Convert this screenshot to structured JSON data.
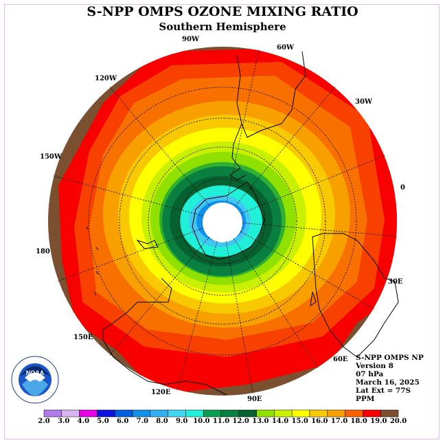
{
  "header": {
    "title": "S-NPP OMPS OZONE MIXING RATIO",
    "subtitle": "Southern Hemisphere"
  },
  "longitude_labels": [
    {
      "text": "90W"
    },
    {
      "text": "60W"
    },
    {
      "text": "30W"
    },
    {
      "text": "0"
    },
    {
      "text": "30E"
    },
    {
      "text": "60E"
    },
    {
      "text": "90E"
    },
    {
      "text": "120E"
    },
    {
      "text": "150E"
    },
    {
      "text": "180"
    },
    {
      "text": "150W"
    },
    {
      "text": "120W"
    }
  ],
  "info": {
    "product": "S-NPP OMPS NP",
    "version": "Version 8",
    "level": "07 hPa",
    "date": "March 16, 2025",
    "lat_ext": "Lat Ext = 77S",
    "units": "PPM"
  },
  "logo": {
    "text": "NOAA"
  },
  "colorbar": {
    "ticks": [
      "2.0",
      "3.0",
      "4.0",
      "5.0",
      "6.0",
      "7.0",
      "8.0",
      "9.0",
      "10.0",
      "11.0",
      "12.0",
      "13.0",
      "14.0",
      "15.0",
      "16.0",
      "17.0",
      "18.0",
      "19.0",
      "20.0"
    ],
    "colors": [
      "#b07ae8",
      "#d8b4f0",
      "#e600e6",
      "#1010e0",
      "#0060e0",
      "#1090e8",
      "#30b0f0",
      "#40d8f0",
      "#20f0d8",
      "#0aa050",
      "#088040",
      "#066030",
      "#90e000",
      "#c8f000",
      "#ffff00",
      "#f8c800",
      "#f8a000",
      "#f86000",
      "#f80000",
      "#7a5030"
    ]
  },
  "map_colors": {
    "polar_night": "#ffffff",
    "brown": "#7a5030",
    "red": "#f80000",
    "red_orange": "#f84000",
    "orange_dark": "#f87000",
    "orange": "#f8a000",
    "gold": "#f8c800",
    "yellow": "#ffff00",
    "yellow_green": "#c8f000",
    "green_light": "#90e000",
    "green": "#30b030",
    "green_dark": "#0a8040",
    "green_darker": "#066030",
    "cyan": "#20f0d8",
    "sky": "#40c8f0",
    "blue": "#1090e8"
  }
}
